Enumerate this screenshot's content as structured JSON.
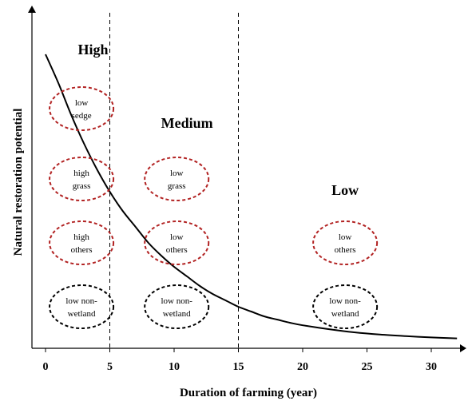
{
  "chart_data": {
    "type": "line",
    "xlabel": "Duration of farming (year)",
    "ylabel": "Natural restoration potential",
    "xlim": [
      -1,
      33
    ],
    "x_ticks": [
      0,
      5,
      10,
      15,
      20,
      25,
      30
    ],
    "x_tick_labels": [
      "0",
      "5",
      "10",
      "15",
      "20",
      "25",
      "30"
    ],
    "y_ticks_shown": false,
    "grid": false,
    "vertical_reference_lines": [
      5,
      15
    ],
    "curve": {
      "description": "decreasing curve",
      "points": [
        [
          0,
          0.92
        ],
        [
          1,
          0.83
        ],
        [
          2,
          0.73
        ],
        [
          3,
          0.64
        ],
        [
          4,
          0.56
        ],
        [
          5,
          0.49
        ],
        [
          6,
          0.43
        ],
        [
          7,
          0.38
        ],
        [
          8,
          0.33
        ],
        [
          9,
          0.29
        ],
        [
          10,
          0.255
        ],
        [
          11,
          0.225
        ],
        [
          12,
          0.195
        ],
        [
          13,
          0.17
        ],
        [
          14,
          0.15
        ],
        [
          15,
          0.13
        ],
        [
          16,
          0.115
        ],
        [
          17,
          0.1
        ],
        [
          18,
          0.09
        ],
        [
          19,
          0.08
        ],
        [
          20,
          0.072
        ],
        [
          22,
          0.06
        ],
        [
          24,
          0.05
        ],
        [
          26,
          0.043
        ],
        [
          28,
          0.038
        ],
        [
          30,
          0.034
        ],
        [
          32,
          0.031
        ]
      ]
    },
    "zones": [
      {
        "label": "High",
        "x": 3.7,
        "y": 0.92
      },
      {
        "label": "Medium",
        "x": 11,
        "y": 0.69
      },
      {
        "label": "Low",
        "x": 23.3,
        "y": 0.48
      }
    ],
    "annotations": [
      {
        "line1": "low",
        "line2": "sedge",
        "x": 2.8,
        "y": 0.75,
        "color": "#b22222"
      },
      {
        "line1": "high",
        "line2": "grass",
        "x": 2.8,
        "y": 0.53,
        "color": "#b22222"
      },
      {
        "line1": "high",
        "line2": "others",
        "x": 2.8,
        "y": 0.33,
        "color": "#b22222"
      },
      {
        "line1": "low non-",
        "line2": "wetland",
        "x": 2.8,
        "y": 0.13,
        "color": "#000000"
      },
      {
        "line1": "low",
        "line2": "grass",
        "x": 10.2,
        "y": 0.53,
        "color": "#b22222"
      },
      {
        "line1": "low",
        "line2": "others",
        "x": 10.2,
        "y": 0.33,
        "color": "#b22222"
      },
      {
        "line1": "low non-",
        "line2": "wetland",
        "x": 10.2,
        "y": 0.13,
        "color": "#000000"
      },
      {
        "line1": "low",
        "line2": "others",
        "x": 23.3,
        "y": 0.33,
        "color": "#b22222"
      },
      {
        "line1": "low non-",
        "line2": "wetland",
        "x": 23.3,
        "y": 0.13,
        "color": "#000000"
      }
    ]
  }
}
